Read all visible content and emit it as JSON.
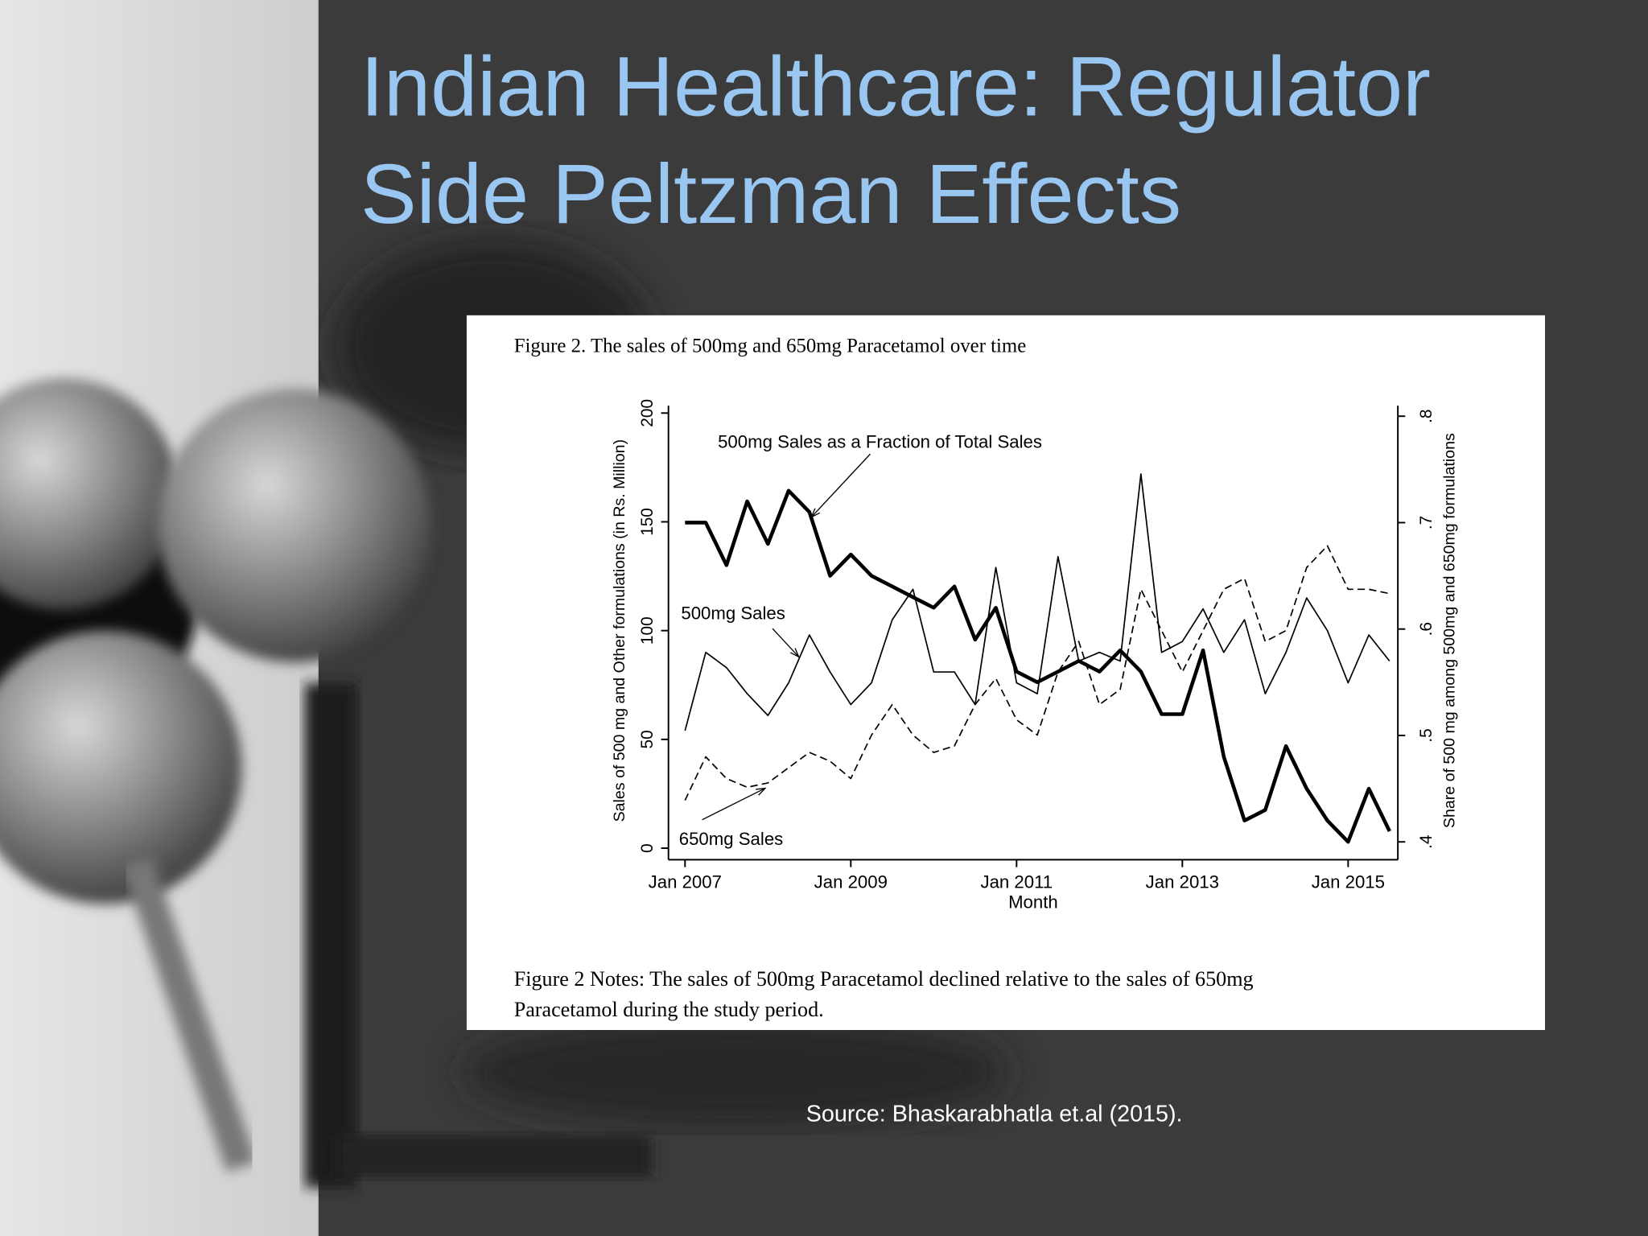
{
  "title_lines": [
    "Indian Healthcare: Regulator",
    "Side Peltzman Effects"
  ],
  "source": "Source: Bhaskarabhatla et.al (2015).",
  "chart_data": {
    "type": "line",
    "title": "Figure 2. The sales of 500mg and 650mg Paracetamol over time",
    "notes": [
      "Figure 2 Notes: The sales of 500mg Paracetamol declined relative to the sales of 650mg",
      "Paracetamol during the study period."
    ],
    "x_label": "Month",
    "y_label": "Sales of 500 mg and Other formulations (in Rs. Million)",
    "y2_label": "Share of 500 mg among 500mg and 650mg formulations",
    "x": [
      2007,
      2007.25,
      2007.5,
      2007.75,
      2008,
      2008.25,
      2008.5,
      2008.75,
      2009,
      2009.25,
      2009.5,
      2009.75,
      2010,
      2010.25,
      2010.5,
      2010.75,
      2011,
      2011.25,
      2011.5,
      2011.75,
      2012,
      2012.25,
      2012.5,
      2012.75,
      2013,
      2013.25,
      2013.5,
      2013.75,
      2014,
      2014.25,
      2014.5,
      2014.75,
      2015,
      2015.25,
      2015.5
    ],
    "xlim": [
      2006.8,
      2015.6
    ],
    "xticks": [
      {
        "value": 2007,
        "label": "Jan 2007"
      },
      {
        "value": 2009,
        "label": "Jan 2009"
      },
      {
        "value": 2011,
        "label": "Jan 2011"
      },
      {
        "value": 2013,
        "label": "Jan 2013"
      },
      {
        "value": 2015,
        "label": "Jan 2015"
      }
    ],
    "ylim": [
      0,
      200
    ],
    "yticks": [
      0,
      50,
      100,
      150,
      200
    ],
    "y2lim": [
      0.4,
      0.8
    ],
    "y2ticks": [
      {
        "value": 0.4,
        "label": ".4"
      },
      {
        "value": 0.5,
        "label": ".5"
      },
      {
        "value": 0.6,
        "label": ".6"
      },
      {
        "value": 0.7,
        "label": ".7"
      },
      {
        "value": 0.8,
        "label": ".8"
      }
    ],
    "grid": false,
    "series": [
      {
        "name": "500mg Sales as a Fraction of Total Sales",
        "color": "#000000",
        "linestyle": "solid",
        "linewidth": "thick",
        "axis": "y2",
        "values": [
          0.7,
          0.7,
          0.66,
          0.72,
          0.68,
          0.73,
          0.71,
          0.65,
          0.67,
          0.65,
          0.64,
          0.63,
          0.62,
          0.64,
          0.59,
          0.62,
          0.56,
          0.55,
          0.56,
          0.57,
          0.56,
          0.58,
          0.56,
          0.52,
          0.52,
          0.58,
          0.48,
          0.42,
          0.43,
          0.49,
          0.45,
          0.42,
          0.4,
          0.45,
          0.41
        ]
      },
      {
        "name": "500mg Sales",
        "color": "#000000",
        "linestyle": "solid",
        "linewidth": "thin",
        "values": [
          54,
          90,
          83,
          71,
          61,
          76,
          98,
          81,
          66,
          76,
          105,
          119,
          81,
          81,
          66,
          129,
          76,
          71,
          134,
          86,
          90,
          86,
          172,
          90,
          95,
          110,
          90,
          105,
          71,
          90,
          115,
          100,
          76,
          98,
          86
        ]
      },
      {
        "name": "650mg Sales",
        "color": "#000000",
        "linestyle": "dashed",
        "linewidth": "thin",
        "values": [
          22,
          42,
          32,
          28,
          30,
          37,
          44,
          40,
          32,
          52,
          66,
          52,
          44,
          47,
          66,
          78,
          59,
          52,
          81,
          95,
          66,
          73,
          119,
          100,
          81,
          100,
          119,
          124,
          95,
          100,
          129,
          139,
          119,
          119,
          117
        ]
      }
    ]
  }
}
